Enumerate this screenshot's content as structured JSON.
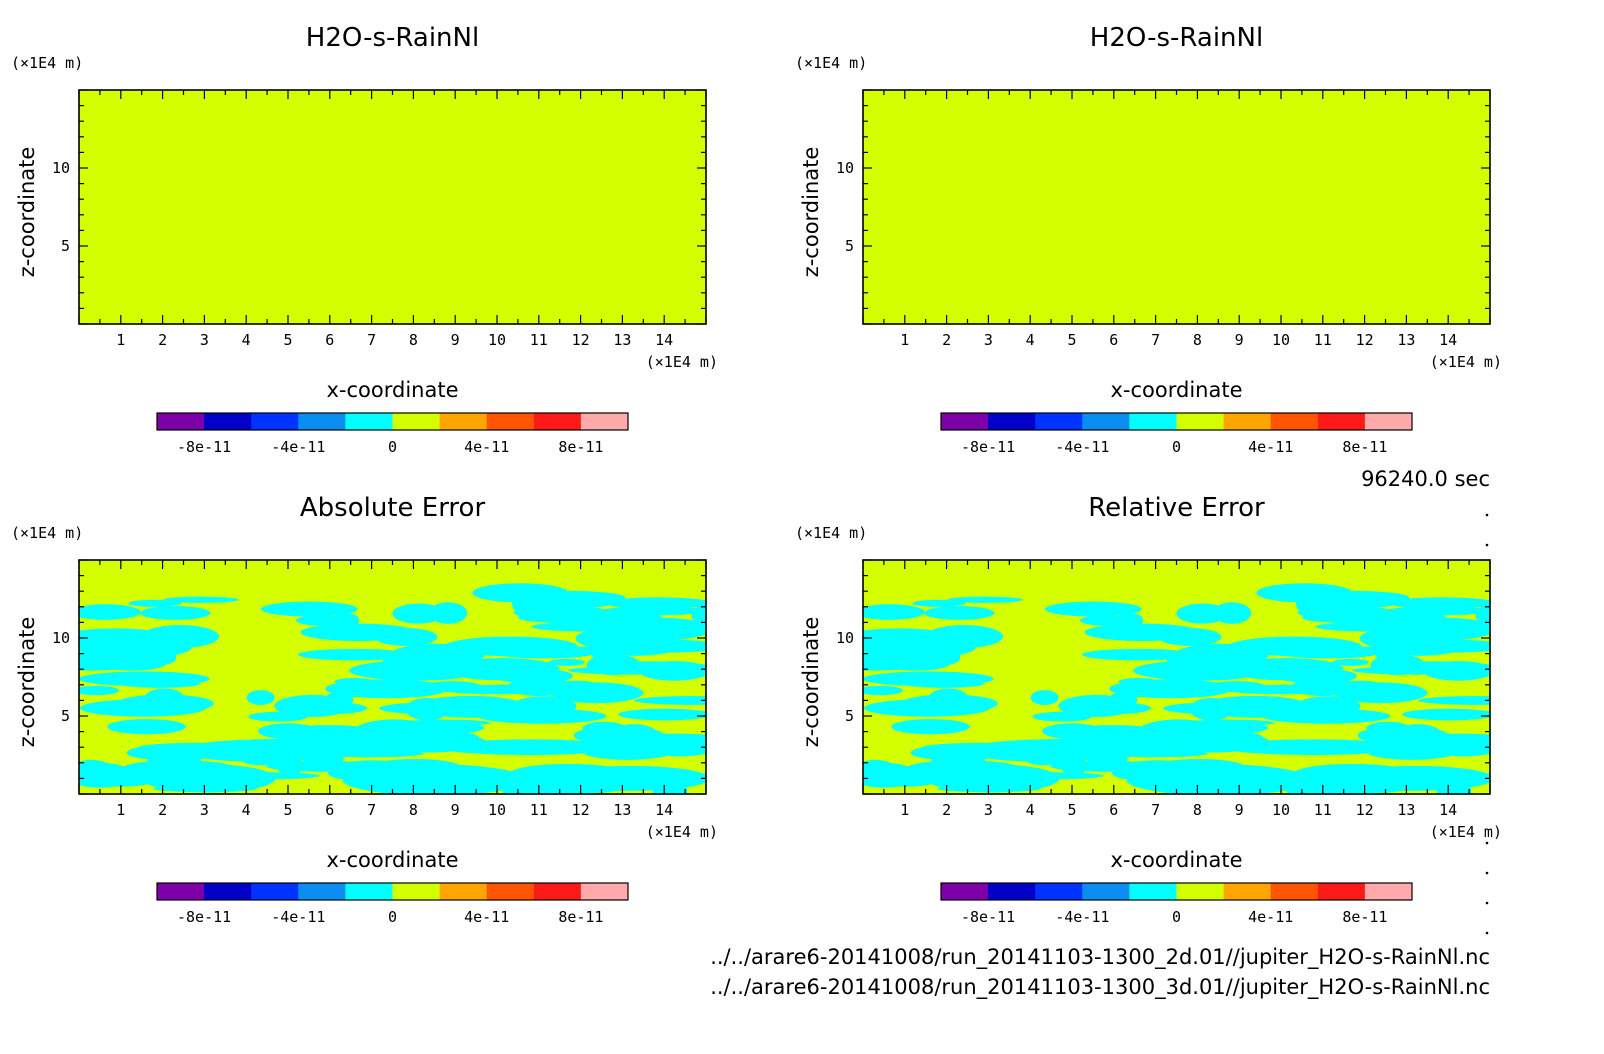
{
  "chart_data": [
    {
      "type": "heatmap",
      "title": "H2O-s-RainNl",
      "xlabel": "x-coordinate",
      "ylabel": "z-coordinate",
      "x_unit": "(×1E4 m)",
      "y_unit": "(×1E4 m)",
      "xlim": [
        0,
        15
      ],
      "ylim": [
        0,
        15
      ],
      "x_ticks": [
        "1",
        "2",
        "3",
        "4",
        "5",
        "6",
        "7",
        "8",
        "9",
        "10",
        "11",
        "12",
        "13",
        "14"
      ],
      "y_ticks": [
        "5",
        "10"
      ],
      "field": "uniform",
      "fill_value": 0
    },
    {
      "type": "heatmap",
      "title": "H2O-s-RainNl",
      "xlabel": "x-coordinate",
      "ylabel": "z-coordinate",
      "x_unit": "(×1E4 m)",
      "y_unit": "(×1E4 m)",
      "xlim": [
        0,
        15
      ],
      "ylim": [
        0,
        15
      ],
      "x_ticks": [
        "1",
        "2",
        "3",
        "4",
        "5",
        "6",
        "7",
        "8",
        "9",
        "10",
        "11",
        "12",
        "13",
        "14"
      ],
      "y_ticks": [
        "5",
        "10"
      ],
      "field": "uniform",
      "fill_value": 0
    },
    {
      "type": "heatmap",
      "title": "Absolute Error",
      "xlabel": "x-coordinate",
      "ylabel": "z-coordinate",
      "x_unit": "(×1E4 m)",
      "y_unit": "(×1E4 m)",
      "xlim": [
        0,
        15
      ],
      "ylim": [
        0,
        15
      ],
      "x_ticks": [
        "1",
        "2",
        "3",
        "4",
        "5",
        "6",
        "7",
        "8",
        "9",
        "10",
        "11",
        "12",
        "13",
        "14"
      ],
      "y_ticks": [
        "5",
        "10"
      ],
      "field": "patchy",
      "fill_value": 0,
      "patch_value": -1e-11,
      "patch_zmax": 13
    },
    {
      "type": "heatmap",
      "title": "Relative Error",
      "xlabel": "x-coordinate",
      "ylabel": "z-coordinate",
      "x_unit": "(×1E4 m)",
      "y_unit": "(×1E4 m)",
      "xlim": [
        0,
        15
      ],
      "ylim": [
        0,
        15
      ],
      "x_ticks": [
        "1",
        "2",
        "3",
        "4",
        "5",
        "6",
        "7",
        "8",
        "9",
        "10",
        "11",
        "12",
        "13",
        "14"
      ],
      "y_ticks": [
        "5",
        "10"
      ],
      "field": "patchy",
      "fill_value": 0,
      "patch_value": -1e-11,
      "patch_zmax": 13
    }
  ],
  "colorbar": {
    "colors": [
      "#7e00a8",
      "#0000c8",
      "#0033ff",
      "#0a8ff0",
      "#00ffff",
      "#d4ff00",
      "#ffa500",
      "#ff5500",
      "#ff1a1a",
      "#ffaaaa"
    ],
    "tick_labels": [
      "-8e-11",
      "-4e-11",
      "0",
      "4e-11",
      "8e-11"
    ],
    "tick_values": [
      -8e-11,
      -4e-11,
      0,
      4e-11,
      8e-11
    ],
    "range": [
      -1e-10,
      1e-10
    ]
  },
  "time_label": "96240.0 sec",
  "file_paths": [
    "../../arare6-20141008/run_20141103-1300_2d.01//jupiter_H2O-s-RainNl.nc",
    "../../arare6-20141008/run_20141103-1300_3d.01//jupiter_H2O-s-RainNl.nc"
  ]
}
